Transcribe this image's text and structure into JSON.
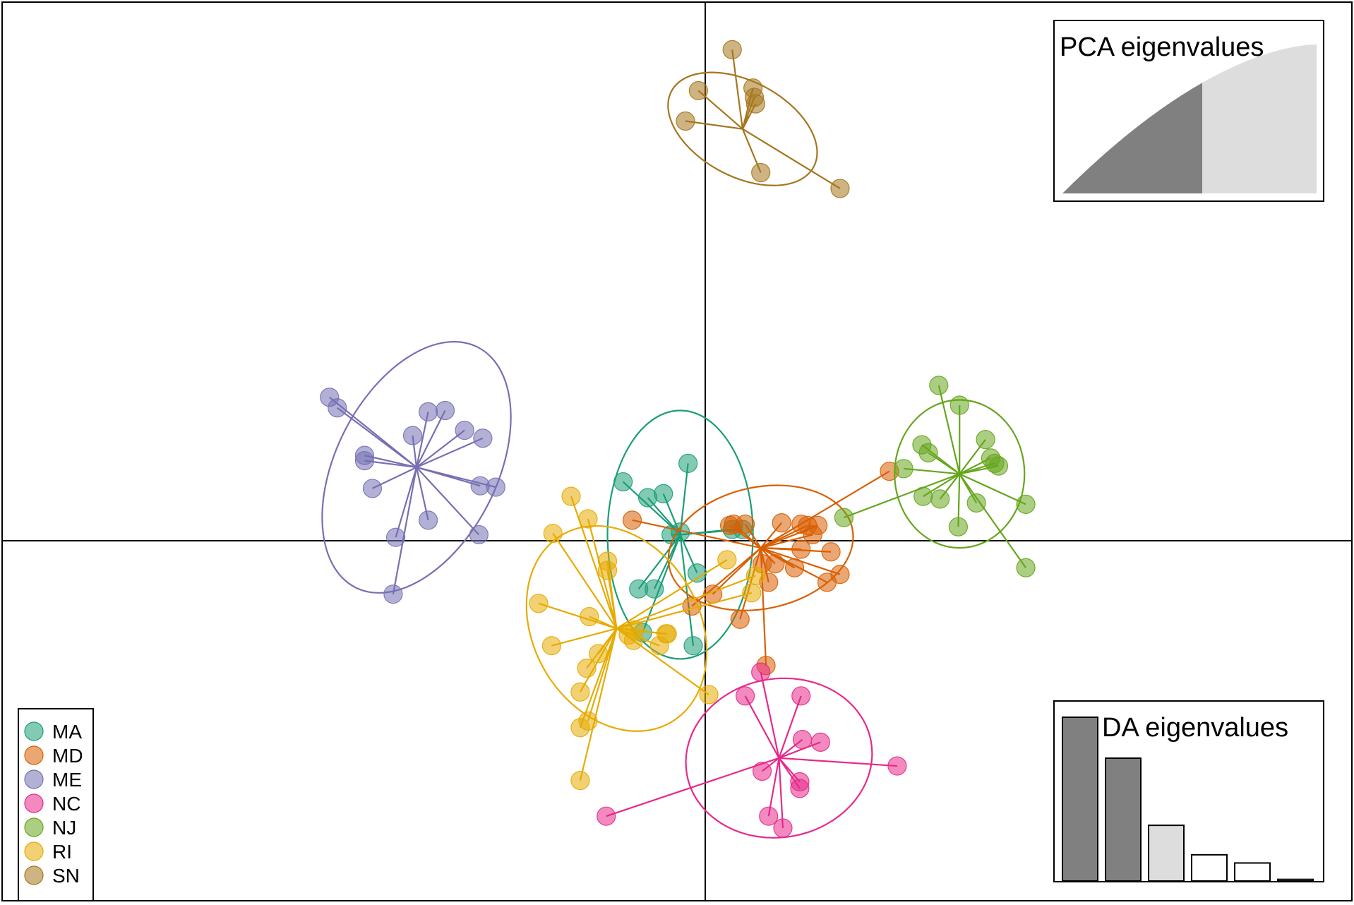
{
  "chart_data": {
    "type": "scatter",
    "title": "",
    "xlabel": "",
    "ylabel": "",
    "xlim": [
      -5.4,
      4.99
    ],
    "ylim": [
      -2.73,
      4.07
    ],
    "grid": false,
    "axes_lines_at_origin": true,
    "legend_position": "bottom-left",
    "point_style": "filled circles, semi-transparent, with lines to group centroid and 95% inertia ellipse",
    "groups": [
      {
        "name": "MA",
        "color": "#1b9e77",
        "centroid": [
          -0.18,
          0.04
        ],
        "ellipse": {
          "rx": 0.56,
          "ry": 0.94,
          "angle": 0
        },
        "points": [
          [
            -0.12,
            0.58
          ],
          [
            -0.62,
            0.44
          ],
          [
            -0.43,
            0.32
          ],
          [
            -0.31,
            0.35
          ],
          [
            -0.18,
            0.06
          ],
          [
            -0.25,
            0.04
          ],
          [
            0.22,
            0.08
          ],
          [
            0.3,
            0.08
          ],
          [
            -0.05,
            -0.25
          ],
          [
            -0.5,
            -0.37
          ],
          [
            -0.38,
            -0.37
          ],
          [
            -0.47,
            -0.7
          ],
          [
            -0.08,
            -0.8
          ]
        ]
      },
      {
        "name": "MD",
        "color": "#d95f02",
        "centroid": [
          0.44,
          -0.06
        ],
        "ellipse": {
          "rx": 0.72,
          "ry": 0.46,
          "angle": -12
        },
        "points": [
          [
            1.43,
            0.52
          ],
          [
            0.2,
            0.11
          ],
          [
            0.6,
            0.13
          ],
          [
            0.75,
            0.12
          ],
          [
            0.8,
            0.11
          ],
          [
            0.88,
            0.11
          ],
          [
            0.23,
            0.12
          ],
          [
            0.32,
            0.12
          ],
          [
            0.84,
            0.04
          ],
          [
            0.75,
            -0.07
          ],
          [
            0.98,
            -0.09
          ],
          [
            0.55,
            -0.18
          ],
          [
            0.45,
            -0.18
          ],
          [
            1.05,
            -0.26
          ],
          [
            0.7,
            -0.21
          ],
          [
            0.5,
            -0.32
          ],
          [
            0.95,
            -0.32
          ],
          [
            0.07,
            -0.41
          ],
          [
            -0.55,
            0.15
          ],
          [
            -0.09,
            -0.5
          ],
          [
            0.28,
            -0.6
          ],
          [
            0.48,
            -0.95
          ]
        ]
      },
      {
        "name": "ME",
        "color": "#7570b3",
        "centroid": [
          -2.21,
          0.55
        ],
        "ellipse": {
          "rx": 0.62,
          "ry": 1.02,
          "angle": 27
        },
        "points": [
          [
            -2.88,
            1.08
          ],
          [
            -2.82,
            1.0
          ],
          [
            -2.12,
            0.97
          ],
          [
            -1.99,
            0.98
          ],
          [
            -1.84,
            0.83
          ],
          [
            -1.7,
            0.77
          ],
          [
            -2.24,
            0.79
          ],
          [
            -2.61,
            0.64
          ],
          [
            -2.61,
            0.6
          ],
          [
            -2.55,
            0.39
          ],
          [
            -1.72,
            0.41
          ],
          [
            -1.6,
            0.4
          ],
          [
            -2.12,
            0.15
          ],
          [
            -2.37,
            0.02
          ],
          [
            -1.73,
            0.04
          ],
          [
            -2.39,
            -0.41
          ]
        ]
      },
      {
        "name": "NC",
        "color": "#e7298a",
        "centroid": [
          0.58,
          -1.65
        ],
        "ellipse": {
          "rx": 0.72,
          "ry": 0.6,
          "angle": -10
        },
        "points": [
          [
            0.44,
            -1.0
          ],
          [
            0.32,
            -1.18
          ],
          [
            0.75,
            -1.18
          ],
          [
            0.76,
            -1.51
          ],
          [
            0.9,
            -1.53
          ],
          [
            1.49,
            -1.71
          ],
          [
            0.45,
            -1.75
          ],
          [
            0.74,
            -1.83
          ],
          [
            0.74,
            -1.88
          ],
          [
            0.5,
            -2.09
          ],
          [
            0.61,
            -2.18
          ],
          [
            -0.75,
            -2.09
          ]
        ]
      },
      {
        "name": "NJ",
        "color": "#66a61e",
        "centroid": [
          1.97,
          0.5
        ],
        "ellipse": {
          "rx": 0.5,
          "ry": 0.56,
          "angle": 0
        },
        "points": [
          [
            1.81,
            1.17
          ],
          [
            1.97,
            1.02
          ],
          [
            1.68,
            0.72
          ],
          [
            1.73,
            0.66
          ],
          [
            2.17,
            0.76
          ],
          [
            2.21,
            0.62
          ],
          [
            2.24,
            0.58
          ],
          [
            1.54,
            0.54
          ],
          [
            2.27,
            0.56
          ],
          [
            1.69,
            0.33
          ],
          [
            1.82,
            0.31
          ],
          [
            2.1,
            0.28
          ],
          [
            2.48,
            0.27
          ],
          [
            1.96,
            0.1
          ],
          [
            1.08,
            0.17
          ],
          [
            2.48,
            -0.21
          ]
        ]
      },
      {
        "name": "RI",
        "color": "#e6ab02",
        "centroid": [
          -0.67,
          -0.67
        ],
        "ellipse": {
          "rx": 0.64,
          "ry": 0.82,
          "angle": -30
        },
        "points": [
          [
            -1.02,
            0.33
          ],
          [
            -0.89,
            0.16
          ],
          [
            -1.16,
            0.05
          ],
          [
            -0.74,
            -0.16
          ],
          [
            -0.74,
            -0.23
          ],
          [
            -1.27,
            -0.48
          ],
          [
            -0.88,
            -0.58
          ],
          [
            -0.53,
            -0.68
          ],
          [
            -0.54,
            -0.76
          ],
          [
            -0.29,
            -0.71
          ],
          [
            -0.28,
            -0.71
          ],
          [
            -0.58,
            -0.72
          ],
          [
            -0.34,
            -0.8
          ],
          [
            -1.17,
            -0.8
          ],
          [
            -0.81,
            -0.86
          ],
          [
            -0.9,
            -0.97
          ],
          [
            -0.95,
            -1.15
          ],
          [
            -0.89,
            -1.37
          ],
          [
            -0.95,
            -1.42
          ],
          [
            0.04,
            -1.17
          ],
          [
            -0.95,
            -1.82
          ],
          [
            0.18,
            -0.15
          ],
          [
            0.4,
            -0.27
          ],
          [
            0.37,
            -0.4
          ]
        ]
      },
      {
        "name": "SN",
        "color": "#a6761d",
        "centroid": [
          0.3,
          3.11
        ],
        "ellipse": {
          "rx": 0.62,
          "ry": 0.36,
          "angle": 28
        },
        "points": [
          [
            0.22,
            3.71
          ],
          [
            0.38,
            3.42
          ],
          [
            -0.04,
            3.4
          ],
          [
            0.39,
            3.35
          ],
          [
            0.4,
            3.3
          ],
          [
            -0.14,
            3.17
          ],
          [
            0.44,
            2.78
          ],
          [
            1.05,
            2.66
          ]
        ]
      }
    ]
  },
  "insets": {
    "pca": {
      "title": "PCA eigenvalues",
      "shape": "monotone cumulative area",
      "retained_fraction": 0.55,
      "retained_color": "#808080",
      "other_color": "#dddddd"
    },
    "da": {
      "title": "DA eigenvalues",
      "values": [
        1.0,
        0.75,
        0.34,
        0.16,
        0.11,
        0.01
      ],
      "retained": 2,
      "retained_color": "#808080",
      "partial_color": "#dddddd",
      "other_color": "#ffffff"
    }
  }
}
